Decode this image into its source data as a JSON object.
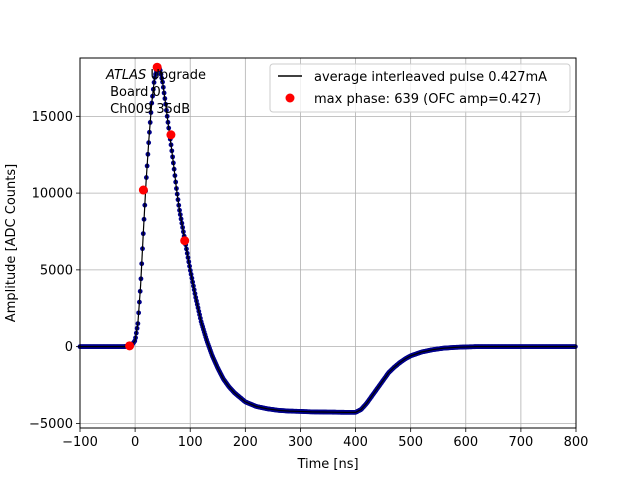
{
  "chart_data": {
    "type": "line",
    "title": "",
    "xlabel": "Time [ns]",
    "ylabel": "Amplitude [ADC Counts]",
    "xlim": [
      -100,
      800
    ],
    "ylim": [
      -5300,
      18800
    ],
    "xticks": [
      -100,
      0,
      100,
      200,
      300,
      400,
      500,
      600,
      700,
      800
    ],
    "xtick_labels": [
      "−100",
      "0",
      "100",
      "200",
      "300",
      "400",
      "500",
      "600",
      "700",
      "800"
    ],
    "yticks": [
      -5000,
      0,
      5000,
      10000,
      15000
    ],
    "ytick_labels": [
      "−5000",
      "0",
      "5000",
      "10000",
      "15000"
    ],
    "grid": true,
    "legend_position": "top-right",
    "annotation": {
      "line1_italic": "ATLAS",
      "line1_rest": " Upgrade",
      "line2": " Board 0",
      "line3": " Ch009 35dB"
    },
    "series": [
      {
        "name": "average interleaved pulse 0.427mA",
        "color": "#000000",
        "marker_color": "#00008b",
        "x": [
          -100,
          -20,
          -10,
          -5,
          0,
          5,
          10,
          15,
          20,
          25,
          30,
          35,
          40,
          45,
          50,
          55,
          60,
          65,
          70,
          75,
          80,
          90,
          100,
          110,
          120,
          130,
          140,
          150,
          160,
          170,
          180,
          190,
          200,
          220,
          240,
          260,
          280,
          300,
          320,
          340,
          360,
          380,
          400,
          410,
          420,
          430,
          440,
          450,
          460,
          470,
          480,
          490,
          500,
          520,
          540,
          560,
          580,
          600,
          620,
          650,
          700,
          750,
          800
        ],
        "y": [
          0,
          0,
          50,
          150,
          400,
          1500,
          4000,
          7500,
          10800,
          13500,
          15800,
          17400,
          18200,
          18100,
          17200,
          15900,
          14500,
          13200,
          11800,
          10300,
          9000,
          7000,
          5000,
          3200,
          1600,
          400,
          -600,
          -1400,
          -2100,
          -2600,
          -3000,
          -3300,
          -3600,
          -3900,
          -4050,
          -4150,
          -4200,
          -4220,
          -4250,
          -4260,
          -4270,
          -4280,
          -4280,
          -4100,
          -3700,
          -3200,
          -2700,
          -2200,
          -1700,
          -1350,
          -1050,
          -800,
          -600,
          -350,
          -200,
          -100,
          -50,
          -20,
          0,
          0,
          0,
          0,
          0
        ]
      },
      {
        "name": "max phase: 639 (OFC amp=0.427)",
        "color": "#ff0000",
        "x": [
          -10,
          15,
          40,
          65,
          90
        ],
        "y": [
          50,
          10200,
          18200,
          13800,
          6900
        ]
      }
    ]
  }
}
